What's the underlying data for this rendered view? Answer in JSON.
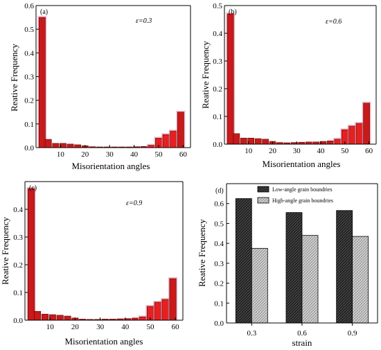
{
  "chart_data": [
    {
      "type": "bar",
      "panel_label": "(a)",
      "annotation": "ε=0.3",
      "xlabel": "Misorientation angles",
      "ylabel": "Reative Frequency",
      "x": [
        2.5,
        5,
        8,
        11,
        14,
        17,
        20,
        23,
        26,
        29,
        32,
        35,
        38,
        41,
        44,
        47,
        50,
        53,
        56,
        59
      ],
      "values": [
        0.55,
        0.035,
        0.018,
        0.018,
        0.015,
        0.012,
        0.008,
        0.004,
        0.003,
        0.003,
        0.003,
        0.003,
        0.003,
        0.004,
        0.005,
        0.01,
        0.04,
        0.055,
        0.07,
        0.15
      ],
      "xlim": [
        0,
        63
      ],
      "ylim": [
        0,
        0.6
      ],
      "xticks": [
        10,
        20,
        30,
        40,
        50,
        60
      ],
      "yticks": [
        0.0,
        0.1,
        0.2,
        0.3,
        0.4,
        0.5,
        0.6
      ],
      "xtick_labels": [
        "10",
        "20",
        "30",
        "40",
        "50",
        "60"
      ],
      "ytick_labels": [
        "0.0",
        "0.1",
        "0.2",
        "0.3",
        "0.4",
        "0.5",
        "0.6"
      ]
    },
    {
      "type": "bar",
      "panel_label": "(b)",
      "annotation": "ε=0.6",
      "xlabel": "Misorientation angles",
      "ylabel": "Reative Frequency",
      "x": [
        2.5,
        5,
        8,
        11,
        14,
        17,
        20,
        23,
        26,
        29,
        32,
        35,
        38,
        41,
        44,
        47,
        50,
        53,
        56,
        59
      ],
      "values": [
        0.47,
        0.038,
        0.022,
        0.022,
        0.02,
        0.018,
        0.01,
        0.006,
        0.005,
        0.006,
        0.007,
        0.008,
        0.008,
        0.01,
        0.012,
        0.018,
        0.052,
        0.065,
        0.075,
        0.148
      ],
      "xlim": [
        0,
        63
      ],
      "ylim": [
        0,
        0.5
      ],
      "xticks": [
        10,
        20,
        30,
        40,
        50,
        60
      ],
      "yticks": [
        0.0,
        0.1,
        0.2,
        0.3,
        0.4,
        0.5
      ],
      "xtick_labels": [
        "10",
        "20",
        "30",
        "40",
        "50",
        "60"
      ],
      "ytick_labels": [
        "0.0",
        "0.1",
        "0.2",
        "0.3",
        "0.4",
        "0.5"
      ]
    },
    {
      "type": "bar",
      "panel_label": "(c)",
      "annotation": "ε=0.9",
      "xlabel": "Misorientation angles",
      "ylabel": "Reative Frequency",
      "x": [
        2.5,
        5,
        8,
        11,
        14,
        17,
        20,
        23,
        26,
        29,
        32,
        35,
        38,
        41,
        44,
        47,
        50,
        53,
        56,
        59
      ],
      "values": [
        0.475,
        0.032,
        0.022,
        0.02,
        0.018,
        0.015,
        0.008,
        0.004,
        0.003,
        0.003,
        0.004,
        0.004,
        0.005,
        0.006,
        0.008,
        0.012,
        0.05,
        0.065,
        0.075,
        0.15
      ],
      "xlim": [
        0,
        63
      ],
      "ylim": [
        0,
        0.5
      ],
      "xticks": [
        10,
        20,
        30,
        40,
        50,
        60
      ],
      "yticks": [
        0.0,
        0.1,
        0.2,
        0.3,
        0.4
      ],
      "xtick_labels": [
        "10",
        "20",
        "30",
        "40",
        "50",
        "60"
      ],
      "ytick_labels": [
        "0.0",
        "0.1",
        "0.2",
        "0.3",
        "0.4"
      ]
    },
    {
      "type": "bar",
      "panel_label": "(d)",
      "xlabel": "strain",
      "ylabel": "Reative Frequency",
      "categories": [
        "0.3",
        "0.6",
        "0.9"
      ],
      "series": [
        {
          "name": "Low-angle grain boundries",
          "values": [
            0.625,
            0.555,
            0.565
          ]
        },
        {
          "name": "High-angle grain boundries",
          "values": [
            0.375,
            0.44,
            0.435
          ]
        }
      ],
      "ylim": [
        0,
        0.7
      ],
      "yticks": [
        0.0,
        0.1,
        0.2,
        0.3,
        0.4,
        0.5,
        0.6
      ],
      "ytick_labels": [
        "0.0",
        "0.1",
        "0.2",
        "0.3",
        "0.4",
        "0.5",
        "0.6"
      ],
      "legend_position": "top-left",
      "colors": {
        "low_angle": "#3a3a3a",
        "high_angle": "#c8c8c8"
      }
    }
  ],
  "colors": {
    "bar_fill": "#c81a1a",
    "bar_highlight": "#e62020",
    "bar_stroke": "#5a0000",
    "bar_glow": "#e58aa8"
  }
}
